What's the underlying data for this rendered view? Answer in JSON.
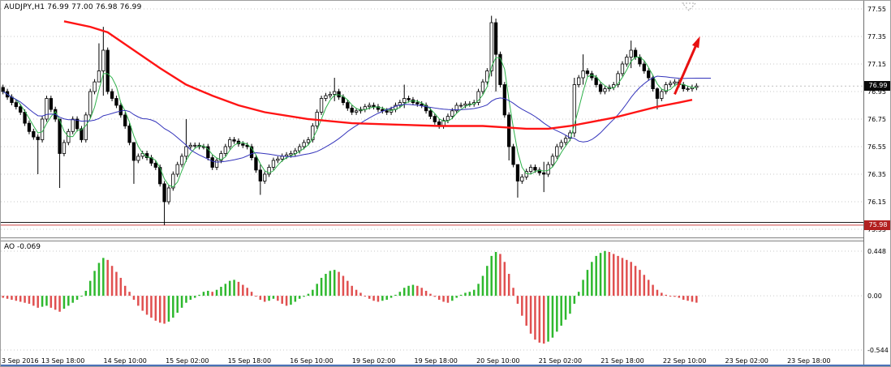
{
  "chart": {
    "symbol_label": "AUDJPY,H1 76.99 77.00 76.98 76.99",
    "current_price": "76.99",
    "support_price": "75.98",
    "colors": {
      "bull_body": "#ffffff",
      "bear_body": "#000000",
      "wick": "#000000",
      "grid": "#c9c9c9",
      "ma_fast_green": "#2eb14a",
      "ma_mid_blue": "#3333bb",
      "ma_slow_red": "#ff1414",
      "support_line": "#cc4444",
      "black_line": "#1a1a1a",
      "arrow_red": "#e81010",
      "ao_up_green": "#2eb82e",
      "ao_down_red": "#e05050",
      "current_badge_bg": "#0a0a0a",
      "support_badge_bg": "#b22020",
      "bottom_bar_blue": "#4a72b8"
    }
  },
  "chart_data": {
    "type": "candlestick",
    "symbol": "AUDJPY",
    "timeframe": "H1",
    "y_ticks": [
      77.55,
      77.35,
      77.15,
      76.95,
      76.75,
      76.55,
      76.35,
      76.15,
      75.95
    ],
    "x_ticks": [
      "3 Sep 2016",
      "13 Sep 18:00",
      "14 Sep 10:00",
      "15 Sep 02:00",
      "15 Sep 18:00",
      "16 Sep 10:00",
      "19 Sep 02:00",
      "19 Sep 18:00",
      "20 Sep 10:00",
      "21 Sep 02:00",
      "21 Sep 18:00",
      "22 Sep 10:00",
      "23 Sep 02:00",
      "23 Sep 18:00"
    ],
    "current_price": 76.99,
    "lines": {
      "black_line_price": 76.0,
      "support_line_price": 75.98
    },
    "first_open": 76.98,
    "open_rule": "previous_close",
    "wick_pad": 0.02,
    "closes": [
      76.95,
      76.91,
      76.87,
      76.84,
      76.8,
      76.72,
      76.66,
      76.62,
      76.6,
      76.75,
      76.9,
      76.82,
      76.75,
      76.5,
      76.58,
      76.66,
      76.75,
      76.68,
      76.6,
      76.78,
      76.95,
      77.02,
      77.1,
      77.25,
      76.95,
      76.9,
      76.85,
      76.78,
      76.7,
      76.58,
      76.45,
      76.48,
      76.5,
      76.47,
      76.43,
      76.4,
      76.28,
      76.15,
      76.25,
      76.35,
      76.42,
      76.48,
      76.55,
      76.56,
      76.56,
      76.55,
      76.55,
      76.47,
      76.4,
      76.45,
      76.5,
      76.55,
      76.6,
      76.59,
      76.57,
      76.56,
      76.55,
      76.47,
      76.38,
      76.3,
      76.35,
      76.4,
      76.45,
      76.46,
      76.48,
      76.49,
      76.5,
      76.52,
      76.55,
      76.58,
      76.6,
      76.7,
      76.8,
      76.9,
      76.92,
      76.93,
      76.95,
      76.91,
      76.87,
      76.83,
      76.8,
      76.81,
      76.82,
      76.84,
      76.85,
      76.84,
      76.82,
      76.81,
      76.8,
      76.82,
      76.85,
      76.87,
      76.9,
      76.89,
      76.87,
      76.86,
      76.85,
      76.81,
      76.77,
      76.73,
      76.7,
      76.74,
      76.77,
      76.81,
      76.85,
      76.85,
      76.86,
      76.86,
      76.87,
      76.95,
      77.02,
      77.1,
      77.45,
      77.22,
      77.0,
      76.78,
      76.55,
      76.42,
      76.3,
      76.33,
      76.37,
      76.4,
      76.38,
      76.36,
      76.35,
      76.42,
      76.48,
      76.55,
      76.58,
      76.61,
      76.65,
      77.0,
      77.05,
      77.1,
      77.08,
      77.05,
      77.0,
      76.95,
      76.97,
      76.98,
      77.0,
      77.08,
      77.15,
      77.2,
      77.25,
      77.2,
      77.15,
      77.1,
      77.05,
      76.97,
      76.9,
      76.95,
      77.0,
      77.01,
      77.02,
      77.0,
      76.97,
      76.97,
      76.98,
      76.99
    ],
    "wick_overrides": {
      "8": [
        76.64,
        76.35
      ],
      "13": [
        76.62,
        76.25
      ],
      "22": [
        77.3,
        77.06
      ],
      "23": [
        77.42,
        76.92
      ],
      "30": [
        76.52,
        76.28
      ],
      "37": [
        76.3,
        75.98
      ],
      "42": [
        76.75,
        76.44
      ],
      "59": [
        76.42,
        76.2
      ],
      "76": [
        77.05,
        76.88
      ],
      "92": [
        77.0,
        76.83
      ],
      "112": [
        77.5,
        77.06
      ],
      "113": [
        77.48,
        76.95
      ],
      "116": [
        76.8,
        76.45
      ],
      "118": [
        76.42,
        76.18
      ],
      "124": [
        76.44,
        76.22
      ],
      "131": [
        77.05,
        76.62
      ],
      "133": [
        77.22,
        77.0
      ],
      "144": [
        77.32,
        77.12
      ],
      "150": [
        76.98,
        76.82
      ]
    },
    "moving_averages": {
      "fast_green_period": 4,
      "mid_blue_period": 20,
      "slow_red_points": [
        [
          14,
          77.46
        ],
        [
          20,
          77.42
        ],
        [
          24,
          77.38
        ],
        [
          30,
          77.25
        ],
        [
          36,
          77.12
        ],
        [
          42,
          77.0
        ],
        [
          48,
          76.92
        ],
        [
          54,
          76.85
        ],
        [
          60,
          76.8
        ],
        [
          70,
          76.75
        ],
        [
          80,
          76.72
        ],
        [
          90,
          76.71
        ],
        [
          100,
          76.7
        ],
        [
          110,
          76.7
        ],
        [
          115,
          76.69
        ],
        [
          120,
          76.68
        ],
        [
          125,
          76.68
        ],
        [
          130,
          76.7
        ],
        [
          135,
          76.73
        ],
        [
          140,
          76.76
        ],
        [
          145,
          76.8
        ],
        [
          150,
          76.84
        ],
        [
          155,
          76.87
        ],
        [
          158,
          76.89
        ]
      ]
    },
    "arrow_annotation": {
      "from_bar": 154,
      "from_price": 76.93,
      "to_bar": 159.5,
      "to_price": 77.33
    },
    "ao": {
      "label": "AO -0.069",
      "current_value": -0.069,
      "y_tick_labels": [
        "0.448",
        "0.00",
        "-0.544"
      ],
      "y_tick_values": [
        0.448,
        0,
        -0.544
      ],
      "values": [
        -0.02,
        -0.03,
        -0.04,
        -0.05,
        -0.06,
        -0.07,
        -0.08,
        -0.1,
        -0.12,
        -0.11,
        -0.1,
        -0.12,
        -0.14,
        -0.16,
        -0.13,
        -0.1,
        -0.07,
        -0.04,
        0.0,
        0.05,
        0.15,
        0.25,
        0.33,
        0.38,
        0.36,
        0.3,
        0.24,
        0.18,
        0.1,
        0.04,
        -0.04,
        -0.1,
        -0.15,
        -0.19,
        -0.22,
        -0.25,
        -0.27,
        -0.28,
        -0.26,
        -0.22,
        -0.17,
        -0.12,
        -0.07,
        -0.04,
        -0.02,
        0.01,
        0.04,
        0.05,
        0.04,
        0.06,
        0.09,
        0.12,
        0.15,
        0.16,
        0.14,
        0.11,
        0.08,
        0.04,
        0.0,
        -0.04,
        -0.06,
        -0.05,
        -0.03,
        -0.05,
        -0.08,
        -0.1,
        -0.09,
        -0.06,
        -0.03,
        -0.01,
        0.02,
        0.06,
        0.12,
        0.18,
        0.22,
        0.25,
        0.26,
        0.24,
        0.2,
        0.15,
        0.1,
        0.06,
        0.03,
        0.0,
        -0.03,
        -0.05,
        -0.06,
        -0.05,
        -0.04,
        -0.02,
        0.01,
        0.04,
        0.08,
        0.1,
        0.11,
        0.1,
        0.08,
        0.05,
        0.02,
        -0.01,
        -0.04,
        -0.06,
        -0.07,
        -0.05,
        -0.02,
        0.01,
        0.03,
        0.04,
        0.06,
        0.12,
        0.2,
        0.3,
        0.4,
        0.44,
        0.42,
        0.34,
        0.22,
        0.08,
        -0.08,
        -0.2,
        -0.3,
        -0.38,
        -0.44,
        -0.47,
        -0.48,
        -0.46,
        -0.42,
        -0.36,
        -0.3,
        -0.24,
        -0.18,
        -0.08,
        0.04,
        0.16,
        0.26,
        0.34,
        0.4,
        0.43,
        0.45,
        0.44,
        0.42,
        0.4,
        0.38,
        0.36,
        0.34,
        0.3,
        0.26,
        0.21,
        0.16,
        0.11,
        0.06,
        0.03,
        0.01,
        0.0,
        -0.01,
        -0.02,
        -0.04,
        -0.05,
        -0.06,
        -0.069
      ]
    }
  }
}
